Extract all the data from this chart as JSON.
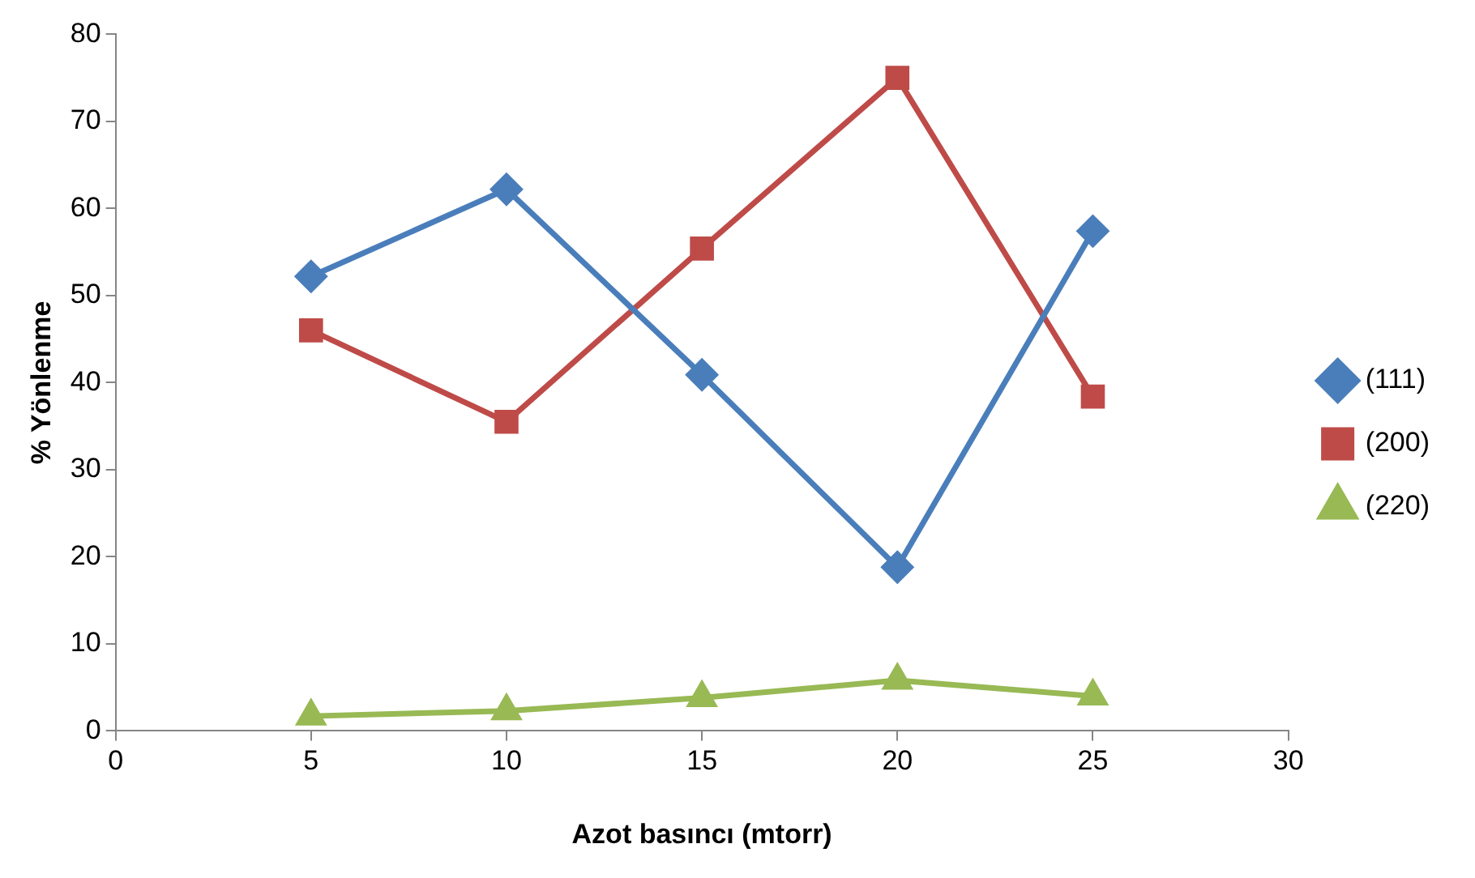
{
  "chart_data": {
    "type": "line",
    "xlabel": "Azot basıncı (mtorr)",
    "ylabel": "% Yönlenme",
    "x": [
      5,
      10,
      15,
      20,
      25
    ],
    "series": [
      {
        "name": "(111)",
        "color": "#4a7ebb",
        "marker": "diamond",
        "values": [
          52.2,
          62.2,
          40.9,
          18.8,
          57.4
        ]
      },
      {
        "name": "(200)",
        "color": "#be4b48",
        "marker": "square",
        "values": [
          46.0,
          35.5,
          55.4,
          75.0,
          38.4
        ]
      },
      {
        "name": "(220)",
        "color": "#98b954",
        "marker": "triangle",
        "values": [
          1.7,
          2.3,
          3.8,
          5.8,
          4.0
        ]
      }
    ],
    "xlim": [
      0,
      30
    ],
    "xticks": [
      0,
      5,
      10,
      15,
      20,
      25,
      30
    ],
    "ylim": [
      0,
      80
    ],
    "yticks": [
      0,
      10,
      20,
      30,
      40,
      50,
      60,
      70,
      80
    ],
    "grid": false,
    "legend": "right",
    "line_style": "solid"
  }
}
